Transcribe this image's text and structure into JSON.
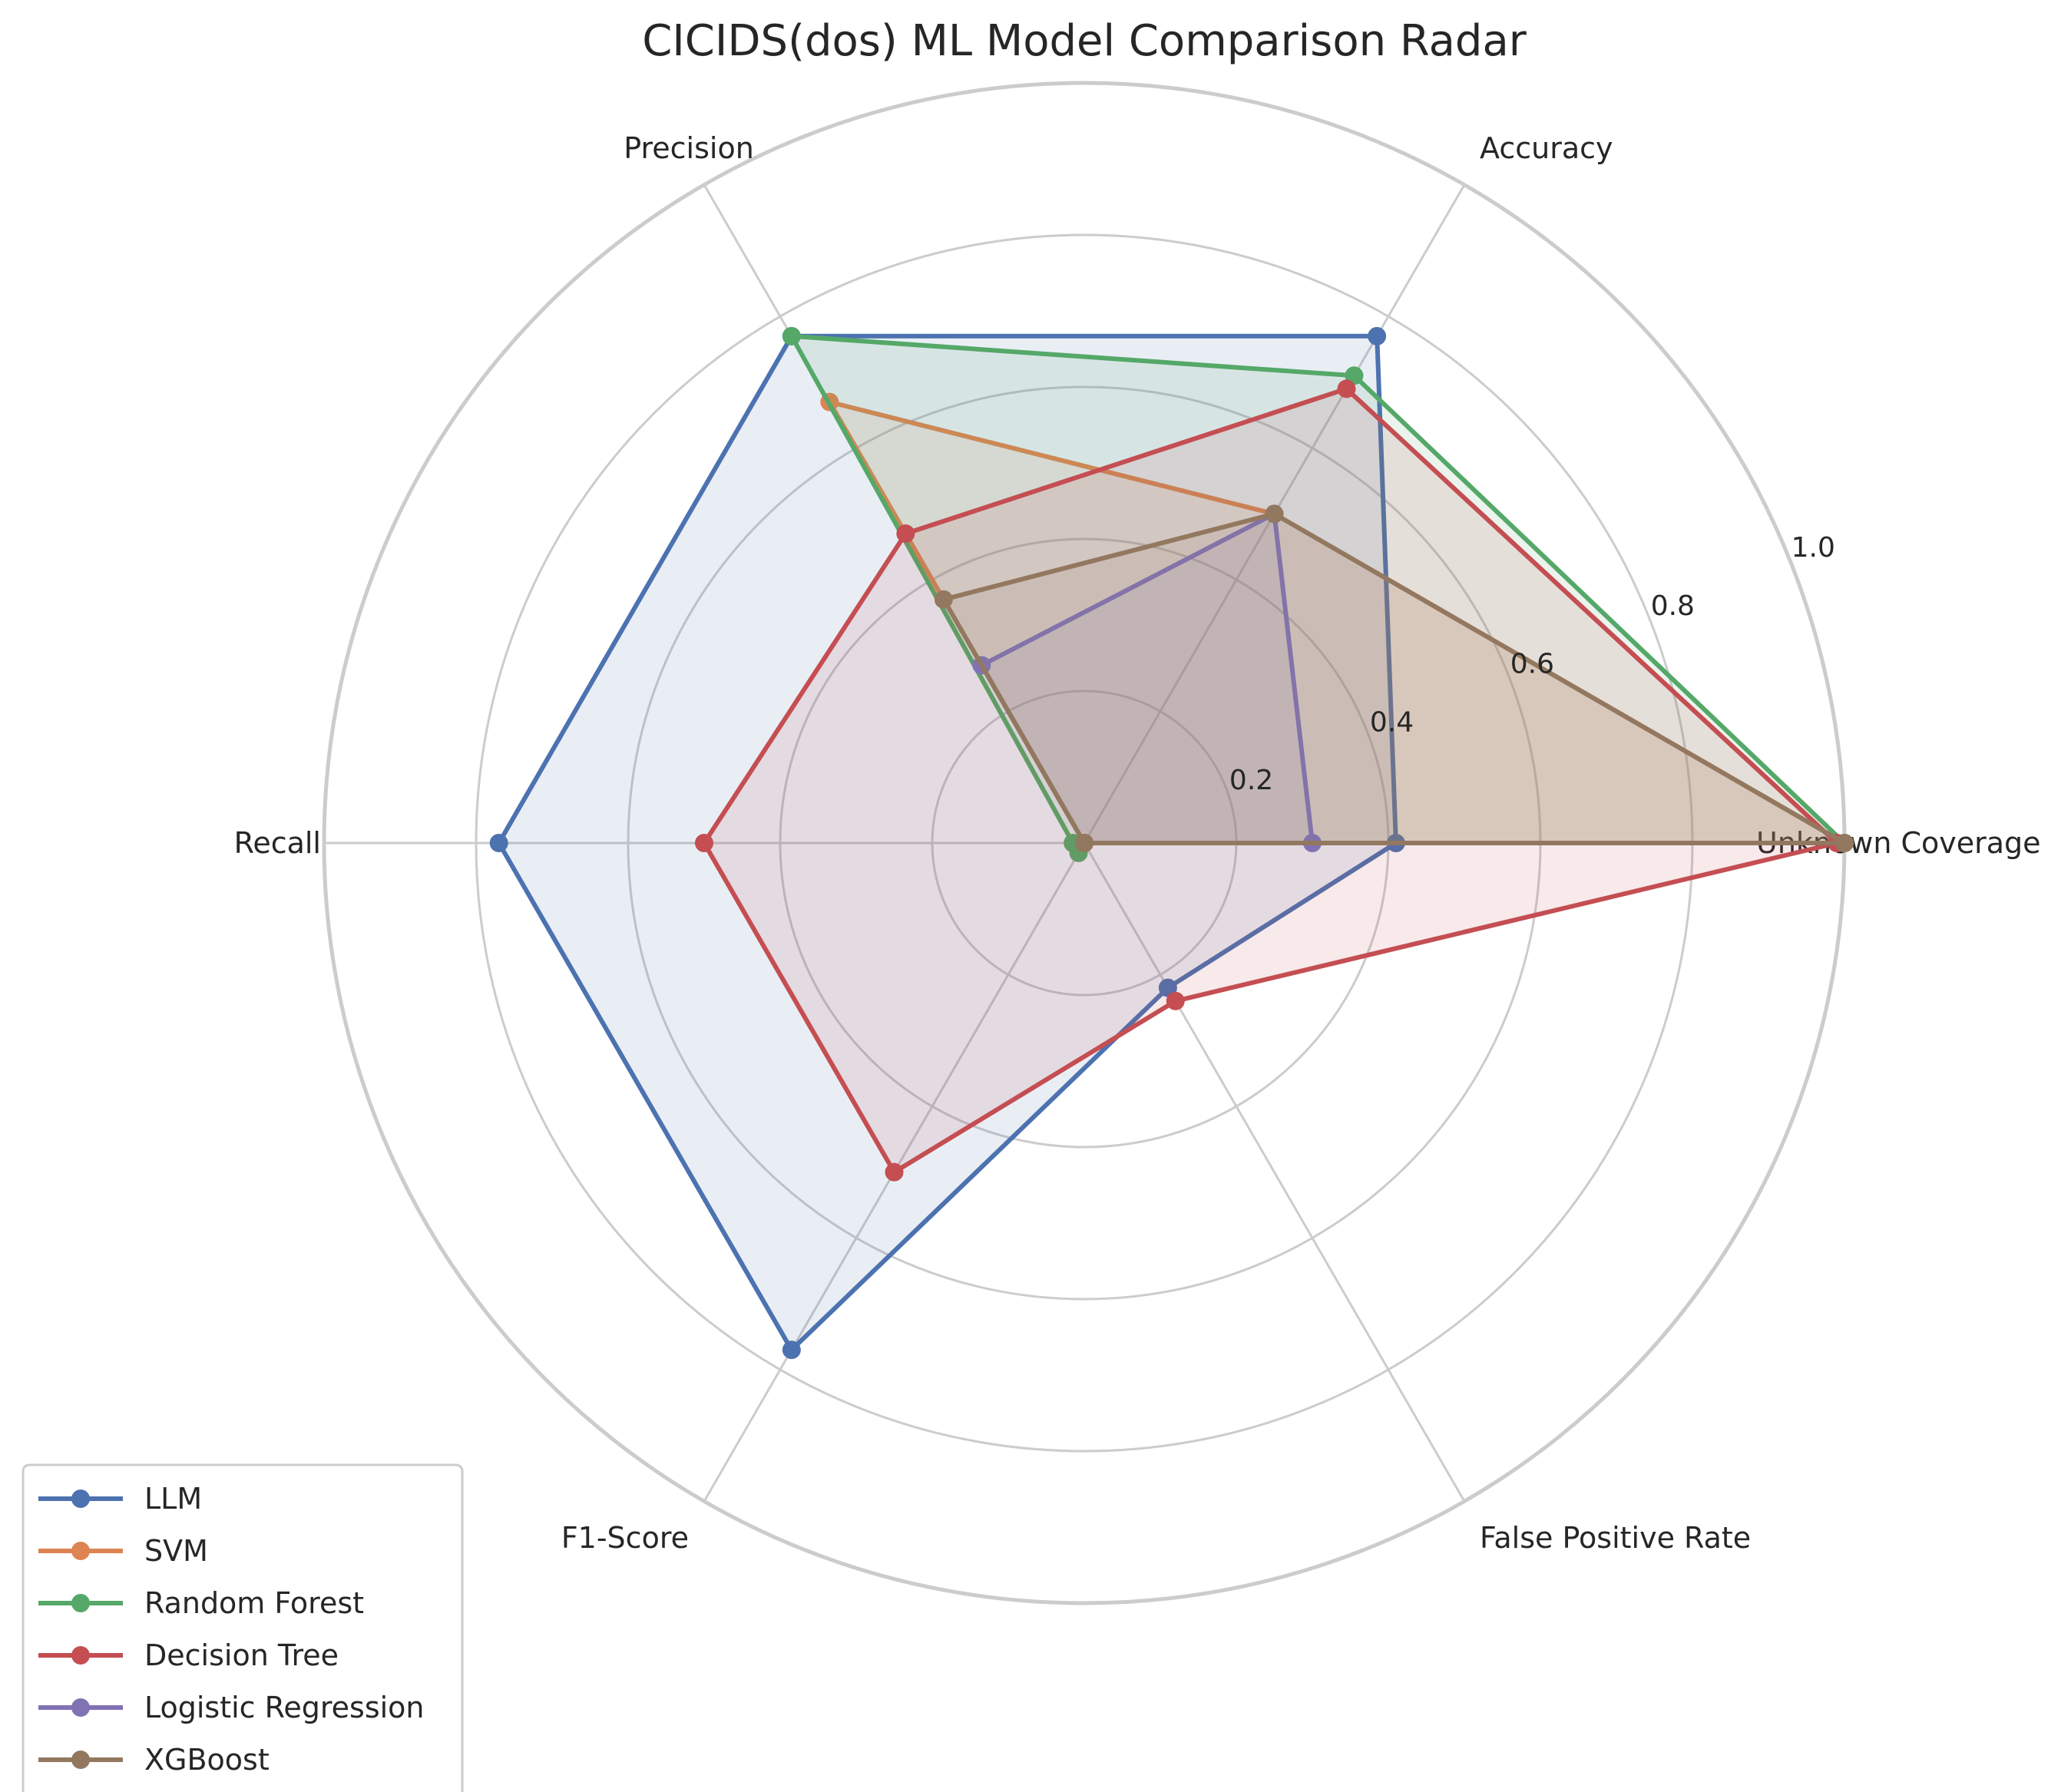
{
  "chart_data": {
    "type": "radar",
    "title": "CICIDS(dos) ML Model Comparison Radar",
    "axes": [
      "Unknown Coverage",
      "Accuracy",
      "Precision",
      "Recall",
      "F1-Score",
      "False Positive Rate"
    ],
    "rlim": [
      0,
      1.0
    ],
    "rticks": [
      0.2,
      0.4,
      0.6,
      0.8,
      1.0
    ],
    "rtick_labels": [
      "0.2",
      "0.4",
      "0.6",
      "0.8",
      "1.0"
    ],
    "grid": true,
    "legend_position": "lower-left",
    "series": [
      {
        "name": "LLM",
        "color": "#4c72b0",
        "values": [
          0.41,
          0.77,
          0.77,
          0.77,
          0.77,
          0.22
        ]
      },
      {
        "name": "SVM",
        "color": "#dd8452",
        "values": [
          1.0,
          0.5,
          0.67,
          0.0,
          0.0,
          0.0
        ]
      },
      {
        "name": "Random Forest",
        "color": "#55a868",
        "values": [
          1.0,
          0.71,
          0.77,
          0.015,
          0.015,
          0.0
        ]
      },
      {
        "name": "Decision Tree",
        "color": "#c44e52",
        "values": [
          0.99,
          0.69,
          0.47,
          0.5,
          0.5,
          0.24
        ]
      },
      {
        "name": "Logistic Regression",
        "color": "#8172b3",
        "values": [
          0.3,
          0.5,
          0.27,
          0.0,
          0.0,
          0.0
        ]
      },
      {
        "name": "XGBoost",
        "color": "#937860",
        "values": [
          1.0,
          0.5,
          0.37,
          0.0,
          0.0,
          0.0
        ]
      }
    ]
  }
}
